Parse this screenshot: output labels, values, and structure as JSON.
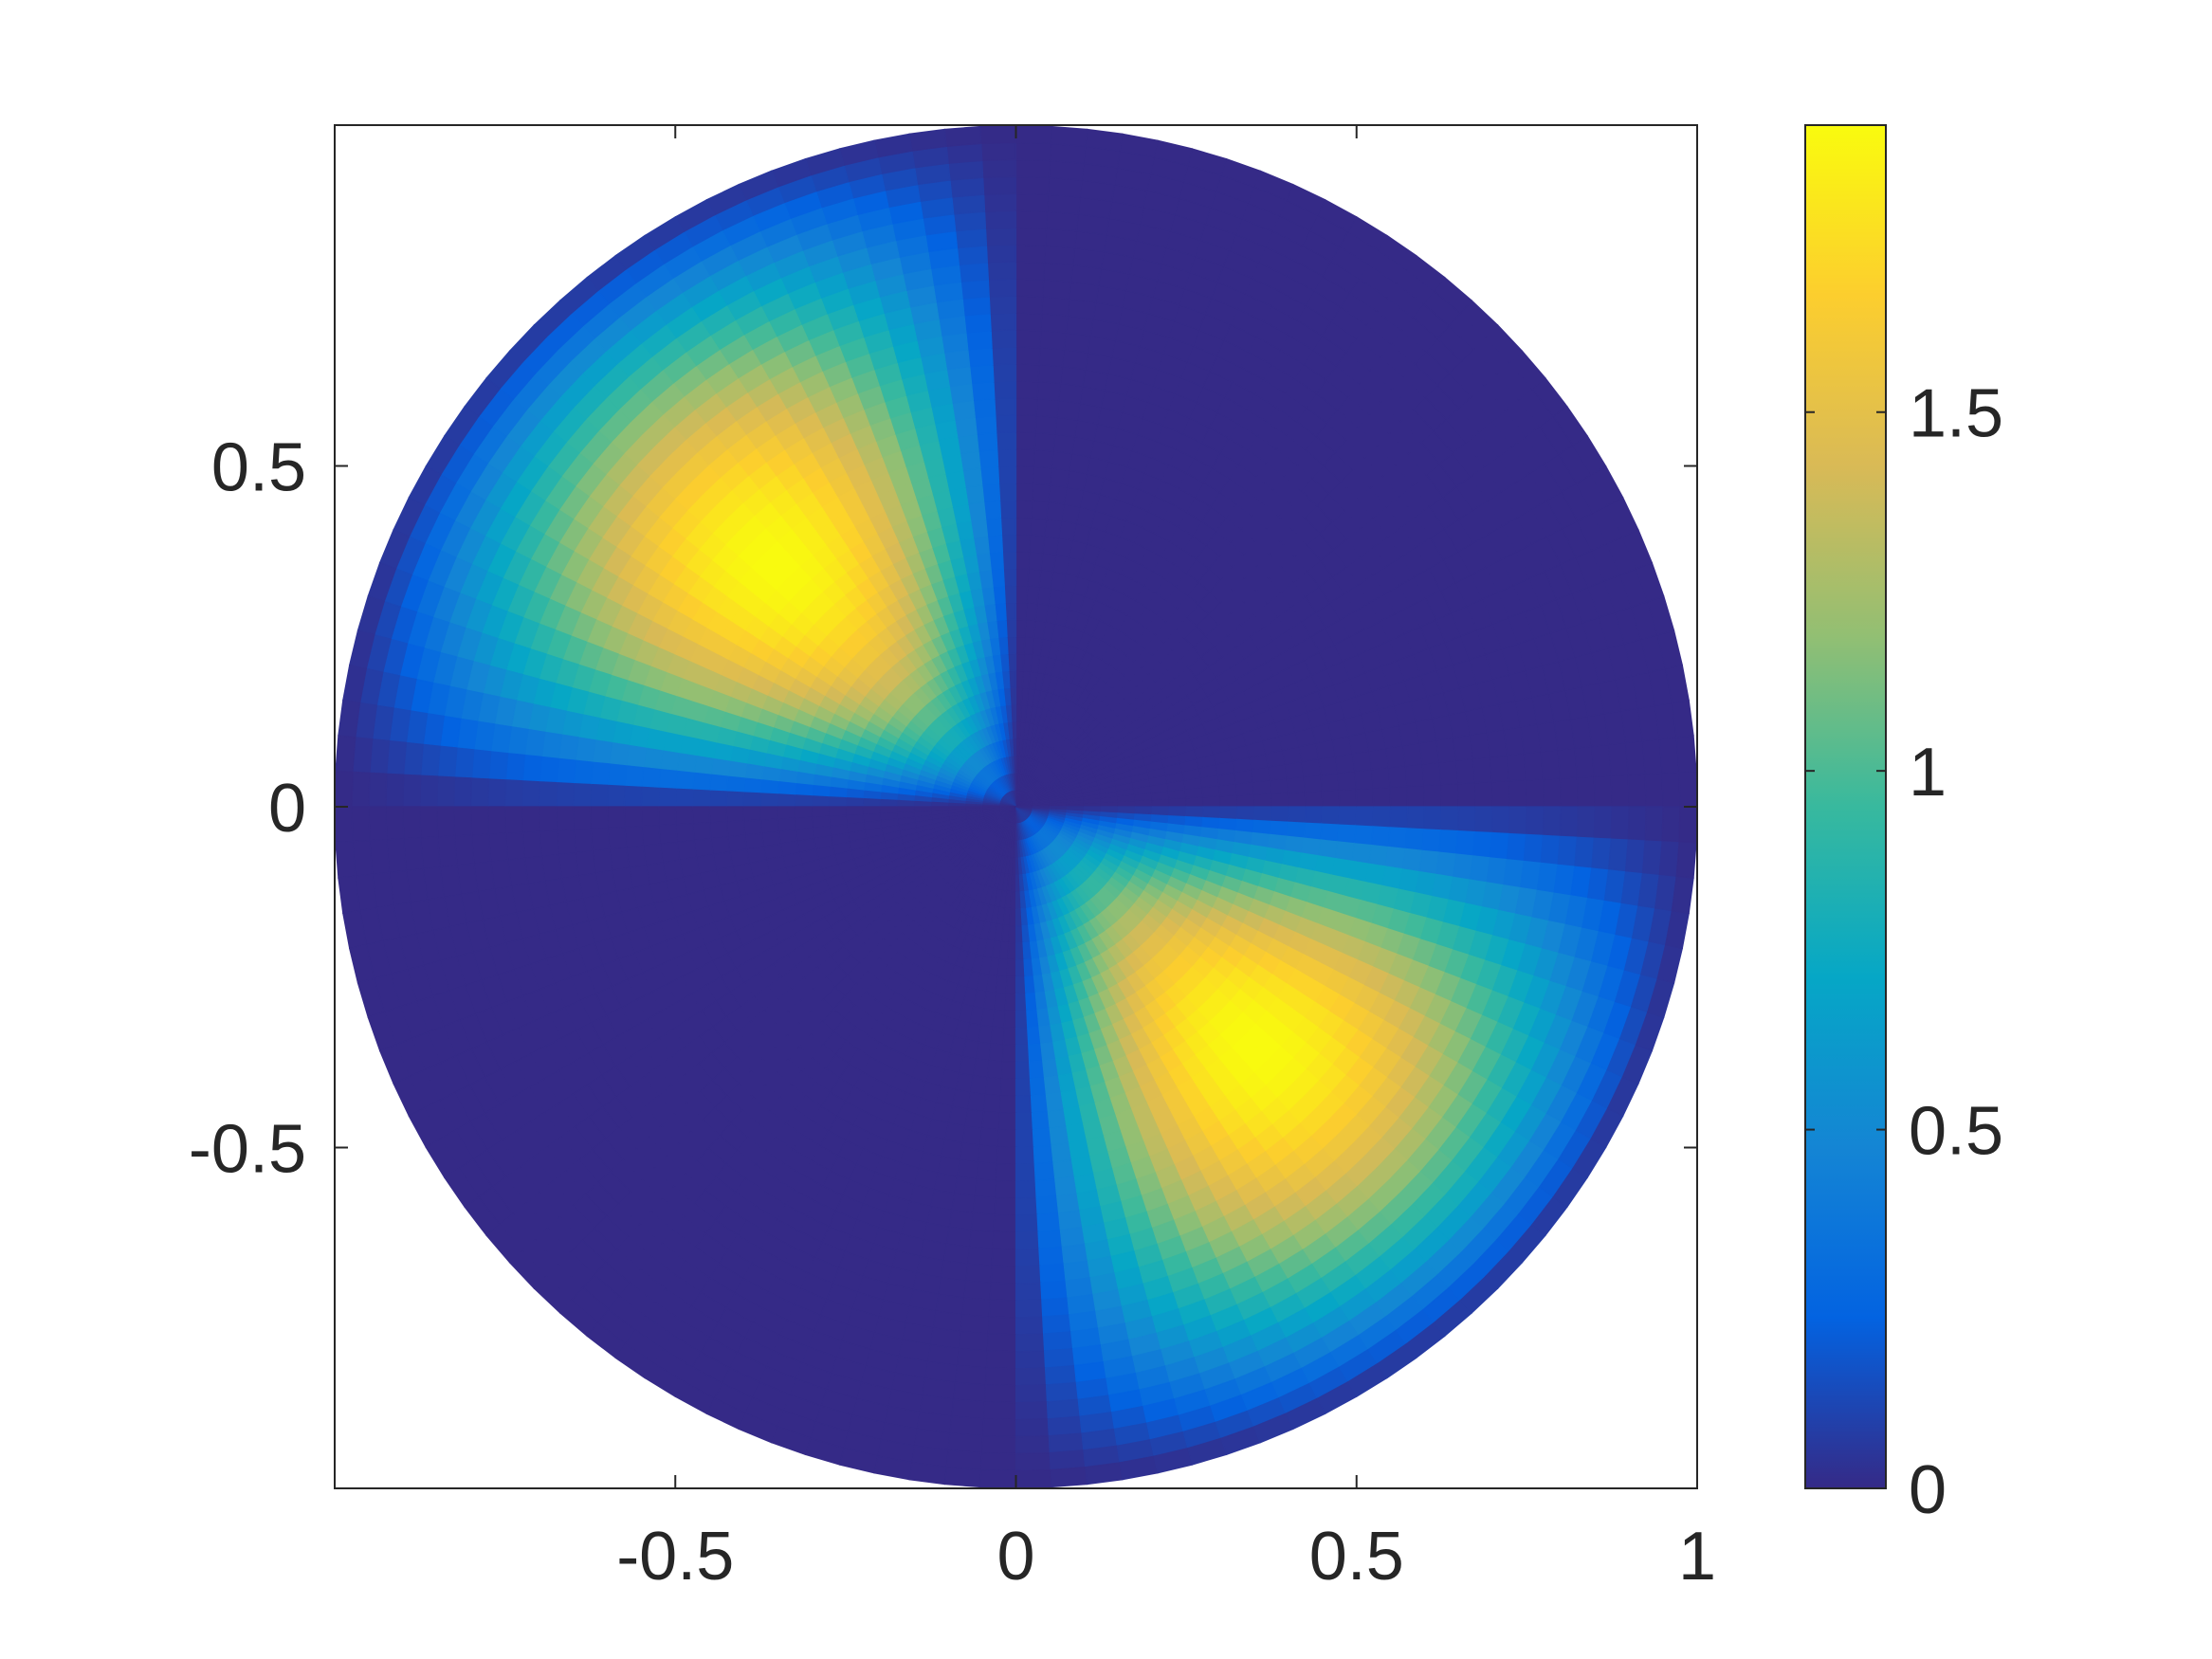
{
  "chart_data": {
    "type": "heatmap",
    "title": "",
    "xlabel": "",
    "ylabel": "",
    "domain": "unit disk",
    "xlim": [
      -1,
      1
    ],
    "ylim": [
      -1,
      1
    ],
    "grid": false,
    "colormap": "parula",
    "colormap_stops": [
      "#352a87",
      "#0363e1",
      "#1485d4",
      "#06a7c6",
      "#38b99e",
      "#92bf73",
      "#d9ba56",
      "#fcce2e",
      "#f9fb0e"
    ],
    "x_ticks": [
      -0.5,
      0,
      0.5,
      1
    ],
    "x_tick_labels": [
      "-0.5",
      "0",
      "0.5",
      "1"
    ],
    "y_ticks": [
      0.5,
      0,
      -0.5
    ],
    "y_tick_labels": [
      "0.5",
      "0",
      "-0.5"
    ],
    "colorbar": {
      "placement": "right",
      "clim": [
        0,
        1.9
      ],
      "ticks": [
        0,
        0.5,
        1,
        1.5
      ],
      "tick_labels": [
        "0",
        "0.5",
        "1",
        "1.5"
      ]
    },
    "regions": [
      {
        "quadrant": "x>0, y>0",
        "value": 0
      },
      {
        "quadrant": "x<0, y<0",
        "value": 0
      },
      {
        "quadrant": "x<0, y>0",
        "peak_value": 1.9,
        "peak_at": [
          -0.5,
          0.5
        ]
      },
      {
        "quadrant": "x>0, y<0",
        "peak_value": 1.9,
        "peak_at": [
          0.5,
          -0.5
        ]
      }
    ]
  }
}
